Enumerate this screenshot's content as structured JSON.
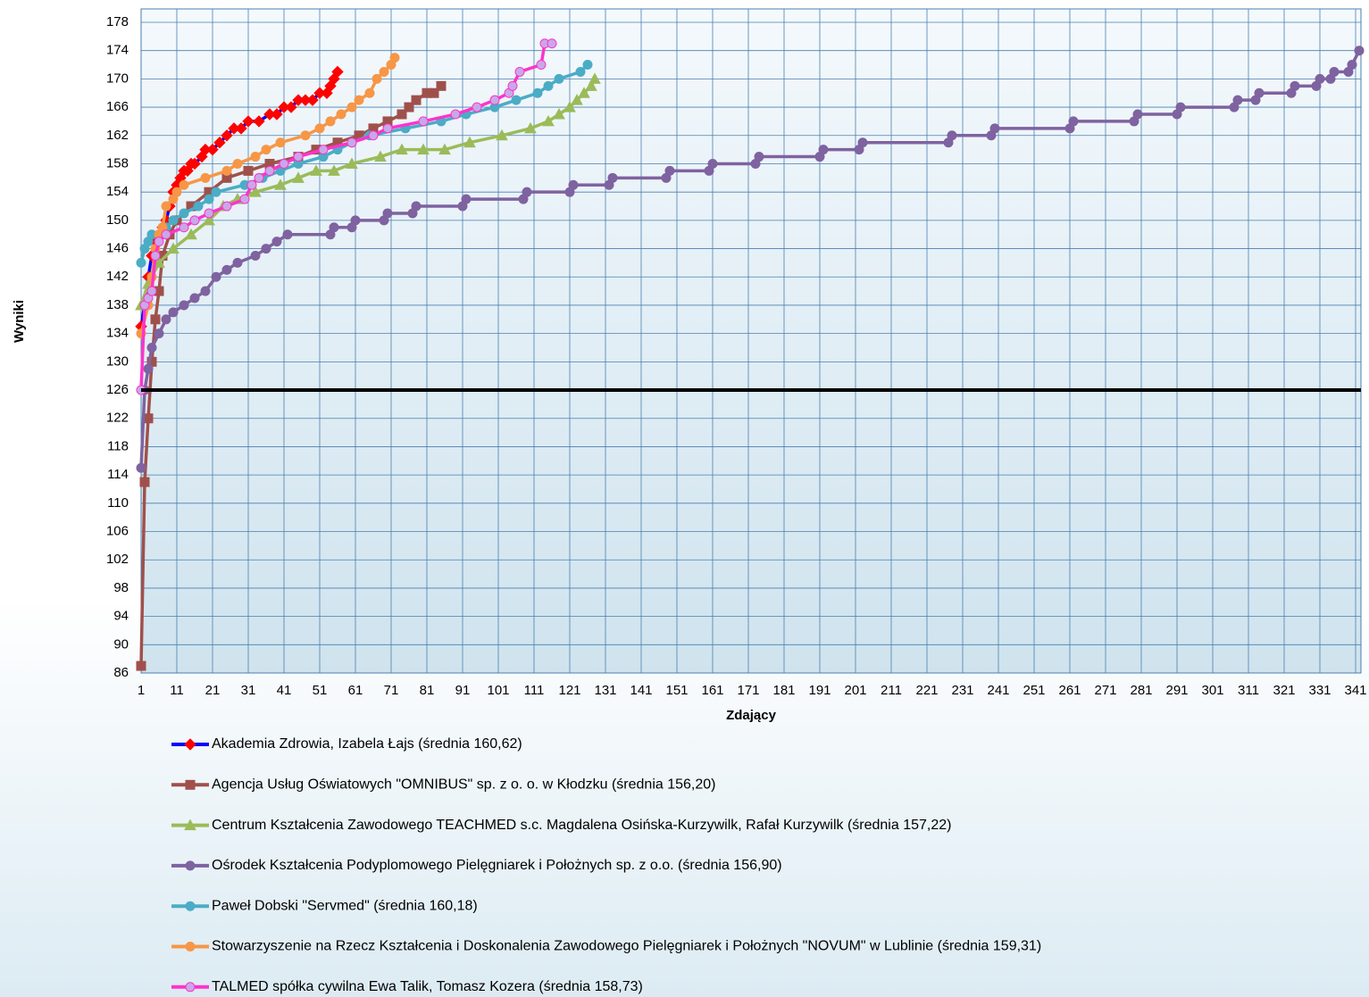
{
  "chart_data": {
    "type": "line",
    "xlabel": "Zdający",
    "ylabel": "Wyniki",
    "xlim": [
      1,
      342
    ],
    "ylim": [
      86,
      178
    ],
    "xticks": [
      1,
      11,
      21,
      31,
      41,
      51,
      61,
      71,
      81,
      91,
      101,
      111,
      121,
      131,
      141,
      151,
      161,
      171,
      181,
      191,
      201,
      211,
      221,
      231,
      241,
      251,
      261,
      271,
      281,
      291,
      301,
      311,
      321,
      331,
      341
    ],
    "yticks": [
      86,
      90,
      94,
      98,
      102,
      106,
      110,
      114,
      118,
      122,
      126,
      130,
      134,
      138,
      142,
      146,
      150,
      154,
      158,
      162,
      166,
      170,
      174,
      178
    ],
    "grid": true,
    "legend": "bottom",
    "threshold": 126,
    "threshold_color": "#000000",
    "series": [
      {
        "name": "Akademia Zdrowia, Izabela Łajs (średnia 160,62)",
        "color": "#0000ff",
        "marker": "diamond",
        "marker_color": "#ff0000",
        "x": [
          1,
          2,
          3,
          4,
          5,
          6,
          7,
          8,
          9,
          10,
          11,
          12,
          13,
          14,
          15,
          16,
          18,
          19,
          21,
          23,
          25,
          27,
          29,
          31,
          34,
          37,
          39,
          41,
          43,
          45,
          47,
          49,
          51,
          53,
          54,
          55,
          56
        ],
        "values": [
          135,
          138,
          142,
          145,
          147,
          148,
          149,
          150,
          152,
          154,
          155,
          156,
          157,
          157,
          158,
          158,
          159,
          160,
          160,
          161,
          162,
          163,
          163,
          164,
          164,
          165,
          165,
          166,
          166,
          167,
          167,
          167,
          168,
          168,
          169,
          170,
          171
        ]
      },
      {
        "name": "Agencja Usług Oświatowych \"OMNIBUS\" sp. z o. o. w Kłodzku (średnia 156,20)",
        "color": "#a0504b",
        "marker": "square",
        "marker_color": "#a0504b",
        "x": [
          1,
          2,
          3,
          4,
          5,
          6,
          7,
          9,
          11,
          15,
          20,
          25,
          31,
          37,
          45,
          50,
          56,
          62,
          66,
          70,
          74,
          76,
          78,
          81,
          83,
          85
        ],
        "values": [
          87,
          113,
          122,
          130,
          136,
          140,
          145,
          148,
          150,
          152,
          154,
          156,
          157,
          158,
          159,
          160,
          161,
          162,
          163,
          164,
          165,
          166,
          167,
          168,
          168,
          169
        ]
      },
      {
        "name": "Centrum Kształcenia Zawodowego TEACHMED s.c. Magdalena Osińska-Kurzywilk, Rafał Kurzywilk (średnia 157,22)",
        "color": "#9bbb59",
        "marker": "triangle",
        "marker_color": "#9bbb59",
        "x": [
          1,
          3,
          6,
          10,
          15,
          20,
          24,
          28,
          33,
          40,
          45,
          50,
          55,
          60,
          68,
          74,
          80,
          86,
          93,
          102,
          110,
          115,
          118,
          121,
          123,
          125,
          127,
          128
        ],
        "values": [
          138,
          141,
          144,
          146,
          148,
          150,
          152,
          153,
          154,
          155,
          156,
          157,
          157,
          158,
          159,
          160,
          160,
          160,
          161,
          162,
          163,
          164,
          165,
          166,
          167,
          168,
          169,
          170
        ]
      },
      {
        "name": "Ośrodek Kształcenia Podyplomowego Pielęgniarek i Położnych sp. z o.o. (średnia 156,90)",
        "color": "#7f62a0",
        "marker": "circle",
        "marker_color": "#7f62a0",
        "x": [
          1,
          2,
          3,
          4,
          6,
          8,
          10,
          13,
          16,
          19,
          22,
          25,
          28,
          33,
          36,
          39,
          42,
          54,
          55,
          60,
          61,
          69,
          70,
          77,
          78,
          91,
          92,
          108,
          109,
          121,
          122,
          132,
          133,
          148,
          149,
          160,
          161,
          173,
          174,
          191,
          192,
          202,
          203,
          227,
          228,
          239,
          240,
          261,
          262,
          279,
          280,
          291,
          292,
          307,
          308,
          313,
          314,
          323,
          324,
          330,
          331,
          334,
          335,
          339,
          340,
          342
        ],
        "values": [
          115,
          126,
          129,
          132,
          134,
          136,
          137,
          138,
          139,
          140,
          142,
          143,
          144,
          145,
          146,
          147,
          148,
          148,
          149,
          149,
          150,
          150,
          151,
          151,
          152,
          152,
          153,
          153,
          154,
          154,
          155,
          155,
          156,
          156,
          157,
          157,
          158,
          158,
          159,
          159,
          160,
          160,
          161,
          161,
          162,
          162,
          163,
          163,
          164,
          164,
          165,
          165,
          166,
          166,
          167,
          167,
          168,
          168,
          169,
          169,
          170,
          170,
          171,
          171,
          172,
          174
        ]
      },
      {
        "name": "Paweł Dobski \"Servmed\" (średnia 160,18)",
        "color": "#4bacc6",
        "marker": "circle",
        "marker_color": "#4bacc6",
        "x": [
          1,
          2,
          3,
          4,
          8,
          10,
          13,
          17,
          20,
          22,
          30,
          35,
          40,
          45,
          52,
          56,
          60,
          65,
          75,
          85,
          92,
          100,
          106,
          112,
          115,
          118,
          124,
          126
        ],
        "values": [
          144,
          146,
          147,
          148,
          149,
          150,
          151,
          152,
          153,
          154,
          155,
          156,
          157,
          158,
          159,
          160,
          161,
          162,
          163,
          164,
          165,
          166,
          167,
          168,
          169,
          170,
          171,
          172
        ]
      },
      {
        "name": "Stowarzyszenie na Rzecz Kształcenia i Doskonalenia Zawodowego Pielęgniarek i Położnych \"NOVUM\"  w Lublinie (średnia 159,31)",
        "color": "#f79646",
        "marker": "circle",
        "marker_color": "#f79646",
        "x": [
          1,
          3,
          4,
          5,
          6,
          7,
          8,
          10,
          11,
          13,
          19,
          25,
          28,
          33,
          36,
          40,
          47,
          51,
          54,
          57,
          60,
          62,
          65,
          67,
          69,
          71,
          72
        ],
        "values": [
          134,
          138,
          142,
          146,
          148,
          149,
          152,
          153,
          154,
          155,
          156,
          157,
          158,
          159,
          160,
          161,
          162,
          163,
          164,
          165,
          166,
          167,
          168,
          170,
          171,
          172,
          173
        ]
      },
      {
        "name": "TALMED spółka cywilna Ewa Talik, Tomasz Kozera (średnia 158,73)",
        "color": "#ff33cc",
        "marker": "circle",
        "marker_color": "#c8a8e8",
        "x": [
          1,
          2,
          3,
          4,
          5,
          6,
          8,
          13,
          16,
          20,
          25,
          30,
          32,
          34,
          37,
          41,
          45,
          52,
          60,
          66,
          70,
          80,
          89,
          95,
          100,
          104,
          105,
          107,
          113,
          114,
          116
        ],
        "values": [
          126,
          138,
          139,
          140,
          145,
          147,
          148,
          149,
          150,
          151,
          152,
          153,
          155,
          156,
          157,
          158,
          159,
          160,
          161,
          162,
          163,
          164,
          165,
          166,
          167,
          168,
          169,
          171,
          172,
          175,
          175
        ]
      }
    ]
  }
}
